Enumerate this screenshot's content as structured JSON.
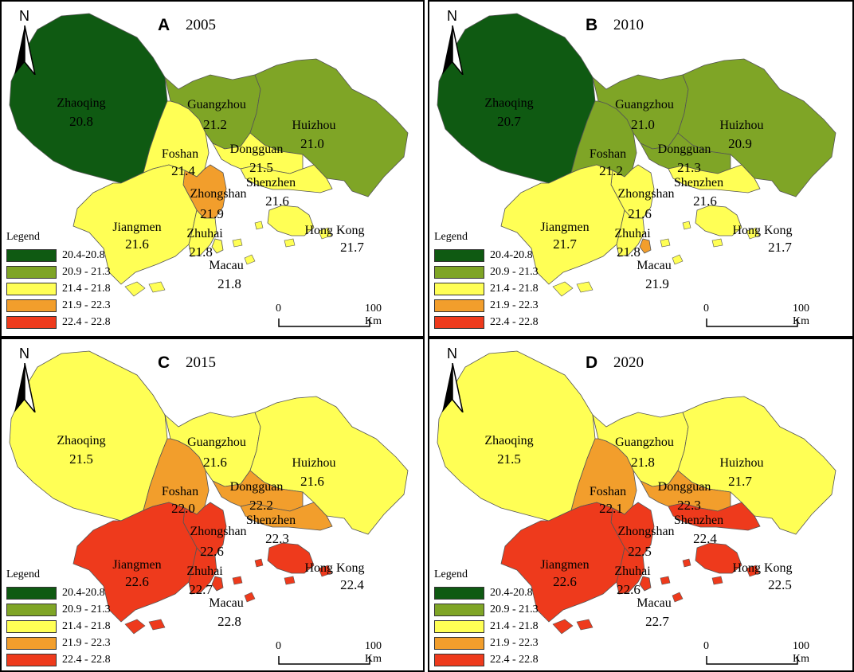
{
  "legend": {
    "title": "Legend",
    "classes": [
      {
        "label": "20.4-20.8",
        "color": "#0f5a12"
      },
      {
        "label": "20.9 - 21.3",
        "color": "#7fa526"
      },
      {
        "label": "21.4 - 21.8",
        "color": "#ffff55"
      },
      {
        "label": "21.9 - 22.3",
        "color": "#f29e2c"
      },
      {
        "label": "22.4 - 22.8",
        "color": "#ee3a1c"
      }
    ]
  },
  "north_label": "N",
  "scale": {
    "zero": "0",
    "max": "100",
    "unit": "Km"
  },
  "panels": [
    {
      "letter": "A",
      "year": "2005",
      "regions": {
        "Zhaoqing": "20.8",
        "Guangzhou": "21.2",
        "Huizhou": "21.0",
        "Foshan": "21.4",
        "Dongguan": "21.5",
        "Shenzhen": "21.6",
        "Zhongshan": "21.9",
        "Jiangmen": "21.6",
        "Zhuhai": "21.8",
        "Hong Kong": "21.7",
        "Macau": "21.8"
      },
      "classes": {
        "Zhaoqing": 0,
        "Guangzhou": 1,
        "Huizhou": 1,
        "Foshan": 2,
        "Dongguan": 2,
        "Shenzhen": 2,
        "Zhongshan": 3,
        "Jiangmen": 2,
        "Zhuhai": 2,
        "Hong Kong": 2,
        "Macau": 2
      }
    },
    {
      "letter": "B",
      "year": "2010",
      "regions": {
        "Zhaoqing": "20.7",
        "Guangzhou": "21.0",
        "Huizhou": "20.9",
        "Foshan": "21.2",
        "Dongguan": "21.3",
        "Shenzhen": "21.6",
        "Zhongshan": "21.6",
        "Jiangmen": "21.7",
        "Zhuhai": "21.8",
        "Hong Kong": "21.7",
        "Macau": "21.9"
      },
      "classes": {
        "Zhaoqing": 0,
        "Guangzhou": 1,
        "Huizhou": 1,
        "Foshan": 1,
        "Dongguan": 1,
        "Shenzhen": 2,
        "Zhongshan": 2,
        "Jiangmen": 2,
        "Zhuhai": 2,
        "Hong Kong": 2,
        "Macau": 3
      }
    },
    {
      "letter": "C",
      "year": "2015",
      "regions": {
        "Zhaoqing": "21.5",
        "Guangzhou": "21.6",
        "Huizhou": "21.6",
        "Foshan": "22.0",
        "Dongguan": "22.2",
        "Shenzhen": "22.3",
        "Zhongshan": "22.6",
        "Jiangmen": "22.6",
        "Zhuhai": "22.7",
        "Hong Kong": "22.4",
        "Macau": "22.8"
      },
      "classes": {
        "Zhaoqing": 2,
        "Guangzhou": 2,
        "Huizhou": 2,
        "Foshan": 3,
        "Dongguan": 3,
        "Shenzhen": 3,
        "Zhongshan": 4,
        "Jiangmen": 4,
        "Zhuhai": 4,
        "Hong Kong": 4,
        "Macau": 4
      }
    },
    {
      "letter": "D",
      "year": "2020",
      "regions": {
        "Zhaoqing": "21.5",
        "Guangzhou": "21.8",
        "Huizhou": "21.7",
        "Foshan": "22.1",
        "Dongguan": "22.3",
        "Shenzhen": "22.4",
        "Zhongshan": "22.5",
        "Jiangmen": "22.6",
        "Zhuhai": "22.6",
        "Hong Kong": "22.5",
        "Macau": "22.7"
      },
      "classes": {
        "Zhaoqing": 2,
        "Guangzhou": 2,
        "Huizhou": 2,
        "Foshan": 3,
        "Dongguan": 3,
        "Shenzhen": 4,
        "Zhongshan": 4,
        "Jiangmen": 4,
        "Zhuhai": 4,
        "Hong Kong": 4,
        "Macau": 4
      }
    }
  ]
}
